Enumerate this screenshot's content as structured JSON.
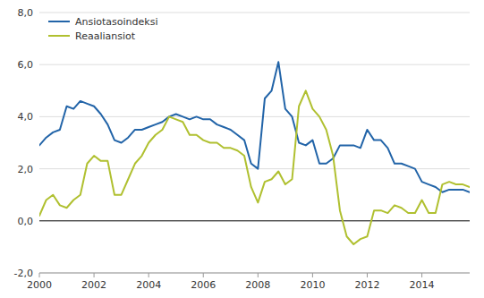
{
  "chart_data": {
    "type": "line",
    "x": [
      2000,
      2000.25,
      2000.5,
      2000.75,
      2001,
      2001.25,
      2001.5,
      2001.75,
      2002,
      2002.25,
      2002.5,
      2002.75,
      2003,
      2003.25,
      2003.5,
      2003.75,
      2004,
      2004.25,
      2004.5,
      2004.75,
      2005,
      2005.25,
      2005.5,
      2005.75,
      2006,
      2006.25,
      2006.5,
      2006.75,
      2007,
      2007.25,
      2007.5,
      2007.75,
      2008,
      2008.25,
      2008.5,
      2008.75,
      2009,
      2009.25,
      2009.5,
      2009.75,
      2010,
      2010.25,
      2010.5,
      2010.75,
      2011,
      2011.25,
      2011.5,
      2011.75,
      2012,
      2012.25,
      2012.5,
      2012.75,
      2013,
      2013.25,
      2013.5,
      2013.75,
      2014,
      2014.25,
      2014.5,
      2014.75,
      2015,
      2015.25,
      2015.5,
      2015.75
    ],
    "series": [
      {
        "name": "Ansiotasoindeksi",
        "color": "#2264a8",
        "values": [
          2.9,
          3.2,
          3.4,
          3.5,
          4.4,
          4.3,
          4.6,
          4.5,
          4.4,
          4.1,
          3.7,
          3.1,
          3.0,
          3.2,
          3.5,
          3.5,
          3.6,
          3.7,
          3.8,
          4.0,
          4.1,
          4.0,
          3.9,
          4.0,
          3.9,
          3.9,
          3.7,
          3.6,
          3.5,
          3.3,
          3.1,
          2.2,
          2.0,
          4.7,
          5.0,
          6.1,
          4.3,
          4.0,
          3.0,
          2.9,
          3.1,
          2.2,
          2.2,
          2.4,
          2.9,
          2.9,
          2.9,
          2.8,
          3.5,
          3.1,
          3.1,
          2.8,
          2.2,
          2.2,
          2.1,
          2.0,
          1.5,
          1.4,
          1.3,
          1.1,
          1.2,
          1.2,
          1.2,
          1.1
        ]
      },
      {
        "name": "Reaaliansiot",
        "color": "#b0c030",
        "values": [
          0.2,
          0.8,
          1.0,
          0.6,
          0.5,
          0.8,
          1.0,
          2.2,
          2.5,
          2.3,
          2.3,
          1.0,
          1.0,
          1.6,
          2.2,
          2.5,
          3.0,
          3.3,
          3.5,
          4.0,
          3.9,
          3.8,
          3.3,
          3.3,
          3.1,
          3.0,
          3.0,
          2.8,
          2.8,
          2.7,
          2.5,
          1.3,
          0.7,
          1.5,
          1.6,
          1.9,
          1.4,
          1.6,
          4.4,
          5.0,
          4.3,
          4.0,
          3.5,
          2.5,
          0.4,
          -0.6,
          -0.9,
          -0.7,
          -0.6,
          0.4,
          0.4,
          0.3,
          0.6,
          0.5,
          0.3,
          0.3,
          0.8,
          0.3,
          0.3,
          1.4,
          1.5,
          1.4,
          1.4,
          1.3
        ]
      }
    ],
    "xlim": [
      2000,
      2015.75
    ],
    "xticks": [
      2000,
      2002,
      2004,
      2006,
      2008,
      2010,
      2012,
      2014
    ],
    "ylim": [
      -2.0,
      8.0
    ],
    "yticks": [
      {
        "value": -2.0,
        "label": "-2,0"
      },
      {
        "value": 0.0,
        "label": "0,0"
      },
      {
        "value": 2.0,
        "label": "2,0"
      },
      {
        "value": 4.0,
        "label": "4,0"
      },
      {
        "value": 6.0,
        "label": "6,0"
      },
      {
        "value": 8.0,
        "label": "8,0"
      }
    ],
    "grid": true,
    "legend": "upper left"
  }
}
